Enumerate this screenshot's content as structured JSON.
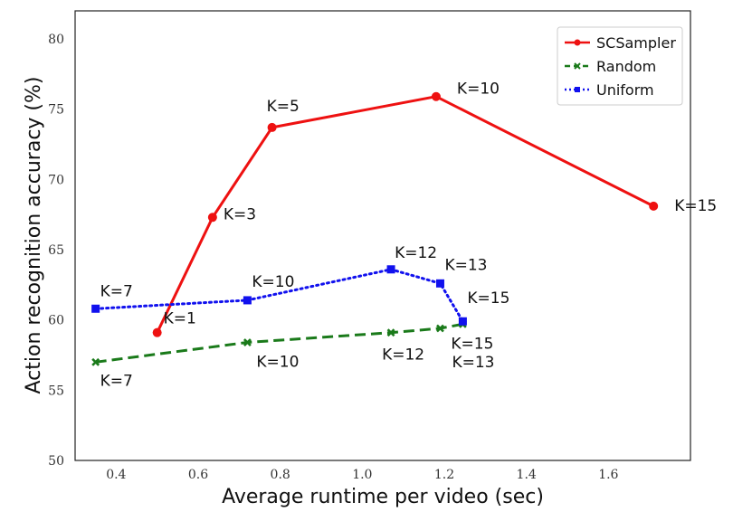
{
  "chart_data": {
    "type": "line",
    "xlabel": "Average runtime per video (sec)",
    "ylabel": "Action recognition accuracy (%)",
    "xlim": [
      0.3,
      1.8
    ],
    "ylim": [
      50,
      82
    ],
    "xticks": [
      0.4,
      0.6,
      0.8,
      1.0,
      1.2,
      1.4,
      1.6
    ],
    "xtick_labels": [
      "0.4",
      "0.6",
      "0.8",
      "1.0",
      "1.2",
      "1.4",
      "1.6"
    ],
    "yticks": [
      50,
      55,
      60,
      65,
      70,
      75,
      80
    ],
    "ytick_labels": [
      "50",
      "55",
      "60",
      "65",
      "70",
      "75",
      "80"
    ],
    "grid": false,
    "legend_position": "top-right",
    "series": [
      {
        "name": "SCSampler",
        "color": "#ee1111",
        "marker": "circle",
        "line_style": "solid",
        "points": [
          {
            "x": 0.5,
            "y": 59.1,
            "label": "K=1"
          },
          {
            "x": 0.635,
            "y": 67.3,
            "label": "K=3"
          },
          {
            "x": 0.78,
            "y": 73.7,
            "label": "K=5"
          },
          {
            "x": 1.18,
            "y": 75.9,
            "label": "K=10"
          },
          {
            "x": 1.71,
            "y": 68.1,
            "label": "K=15"
          }
        ]
      },
      {
        "name": "Random",
        "color": "#1a7a1a",
        "marker": "x",
        "line_style": "dashed",
        "points": [
          {
            "x": 0.35,
            "y": 57.0,
            "label": "K=7"
          },
          {
            "x": 0.72,
            "y": 58.4,
            "label": "K=10"
          },
          {
            "x": 1.07,
            "y": 59.1,
            "label": "K=12"
          },
          {
            "x": 1.19,
            "y": 59.4,
            "label": "K=13"
          },
          {
            "x": 1.245,
            "y": 59.7,
            "label": "K=15"
          }
        ]
      },
      {
        "name": "Uniform",
        "color": "#1111ee",
        "marker": "square",
        "line_style": "dotted",
        "points": [
          {
            "x": 0.35,
            "y": 60.8,
            "label": "K=7"
          },
          {
            "x": 0.72,
            "y": 61.4,
            "label": "K=10"
          },
          {
            "x": 1.07,
            "y": 63.6,
            "label": "K=12"
          },
          {
            "x": 1.19,
            "y": 62.6,
            "label": "K=13"
          },
          {
            "x": 1.245,
            "y": 59.9,
            "label": "K=15"
          }
        ]
      }
    ]
  }
}
